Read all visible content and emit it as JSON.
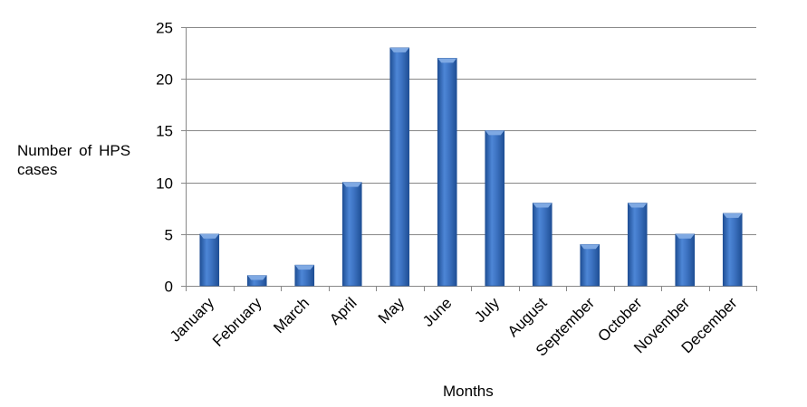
{
  "chart_data": {
    "type": "bar",
    "categories": [
      "January",
      "February",
      "March",
      "April",
      "May",
      "June",
      "July",
      "August",
      "September",
      "October",
      "November",
      "December"
    ],
    "series": [
      {
        "values": [
          5,
          1,
          2,
          10,
          23,
          22,
          15,
          8,
          4,
          8,
          5,
          7
        ]
      }
    ],
    "yticks": [
      "0",
      "5",
      "10",
      "15",
      "20",
      "25"
    ],
    "xlabel": "Months",
    "ylabel": "Number of HPS cases",
    "ylim": [
      0,
      25
    ],
    "grid": "horizontal",
    "legend": "none",
    "colors": {
      "bar": "#3d73c2",
      "bar_dark": "#1f4f95",
      "bar_light": "#7fa9e3",
      "grid": "#888888",
      "axis": "#888888"
    }
  }
}
